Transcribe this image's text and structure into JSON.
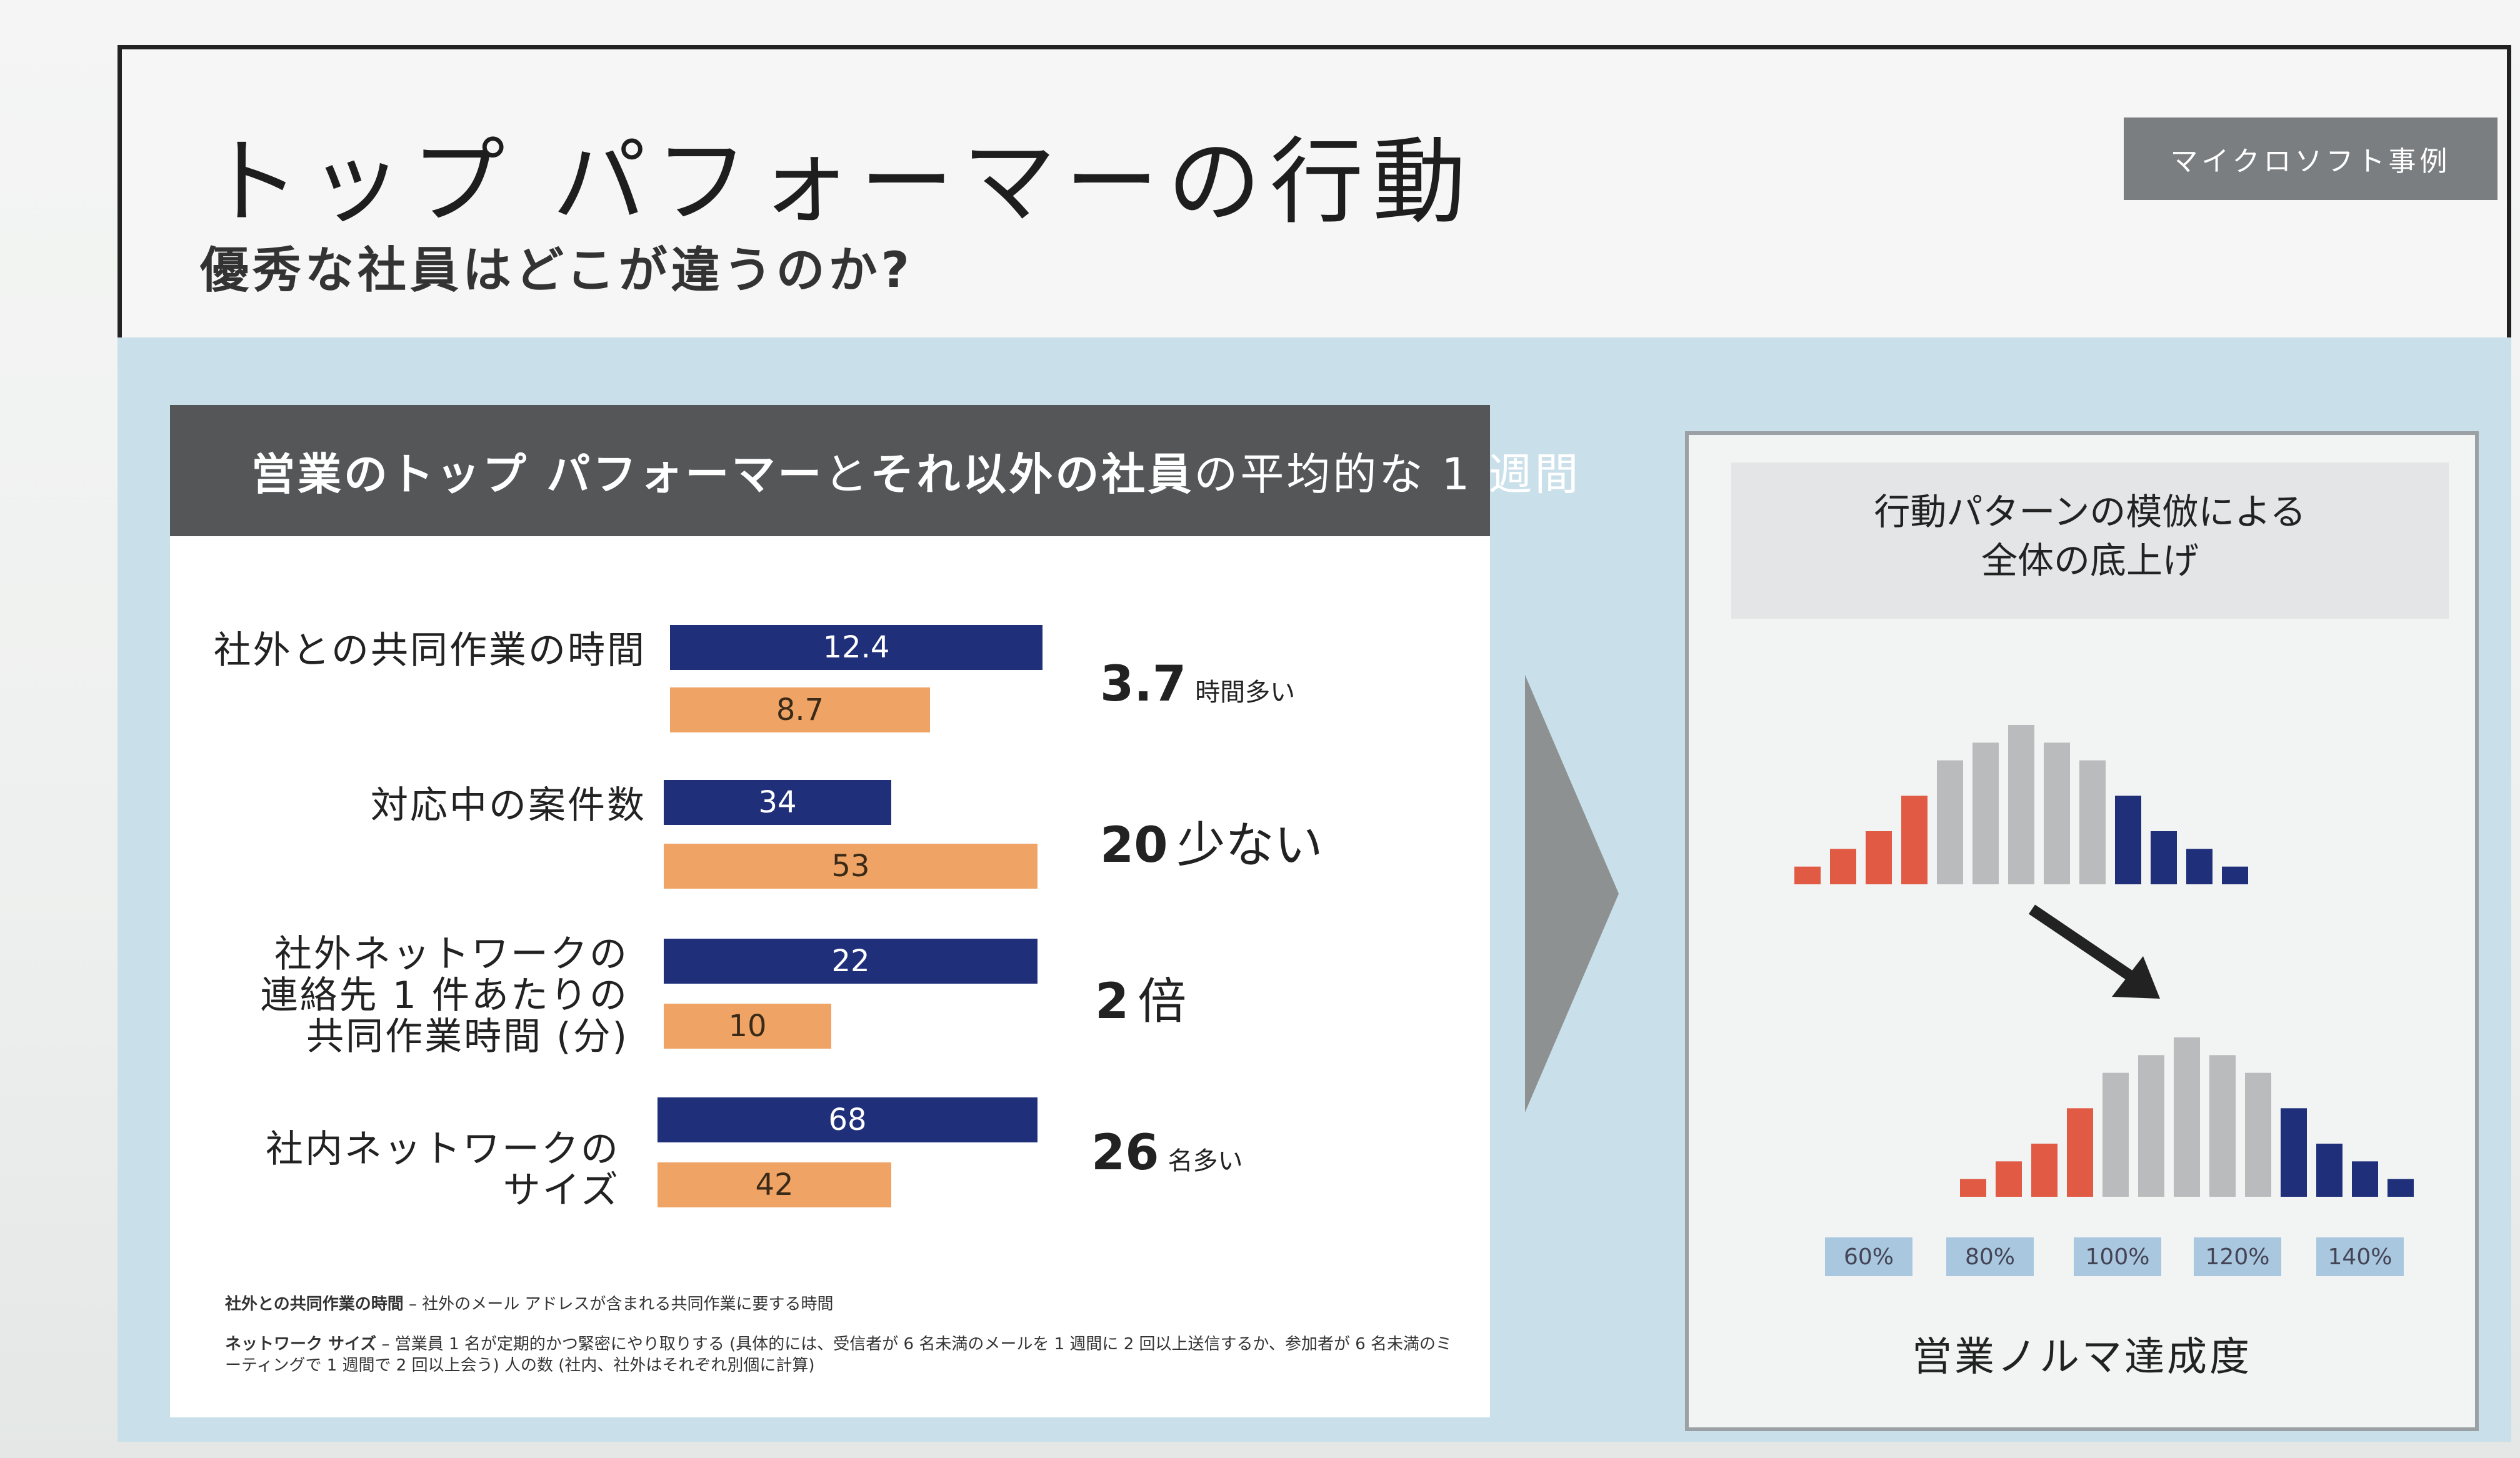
{
  "slide": {
    "title": "トップ パフォーマーの行動",
    "subtitle": "優秀な社員はどこが違うのか?",
    "tag": "マイクロソフト事例"
  },
  "left_panel": {
    "header_bold_1": "営業のトップ パフォーマー",
    "header_normal_1": "と",
    "header_bold_2": "それ以外の社員",
    "header_normal_2": "の平均的な 1 週間",
    "rows": [
      {
        "label": "社外との共同作業の時間",
        "top_value": "12.4",
        "other_value": "8.7",
        "diff_num": "3.7",
        "diff_unit": "時間多い"
      },
      {
        "label": "対応中の案件数",
        "top_value": "34",
        "other_value": "53",
        "diff_num": "20",
        "diff_unit": "少ない"
      },
      {
        "label_lines": [
          "社外ネットワークの",
          "連絡先 1 件あたりの",
          "共同作業時間 (分)"
        ],
        "top_value": "22",
        "other_value": "10",
        "diff_num": "2",
        "diff_unit": "倍"
      },
      {
        "label_lines": [
          "社内ネットワークの",
          "サイズ"
        ],
        "top_value": "68",
        "other_value": "42",
        "diff_num": "26",
        "diff_unit": "名多い"
      }
    ],
    "note1_bold": "社外との共同作業の時間",
    "note1_text": " – 社外のメール アドレスが含まれる共同作業に要する時間",
    "note2_bold": "ネットワーク サイズ",
    "note2_text": " – 営業員 1 名が定期的かつ緊密にやり取りする (具体的には、受信者が 6 名未満のメールを 1 週間に 2 回以上送信するか、参加者が 6 名未満のミーティングで 1 週間で 2 回以上会う) 人の数 (社内、社外はそれぞれ別個に計算)"
  },
  "right_panel": {
    "head_line1": "行動パターンの模倣による",
    "head_line2": "全体の底上げ",
    "ticks": [
      "60%",
      "80%",
      "100%",
      "120%",
      "140%"
    ],
    "footer": "営業ノルマ達成度",
    "colors": {
      "low": "#e05a44",
      "mid": "#b9bbbc",
      "high": "#1f2f7a"
    }
  },
  "chart_data": {
    "type": "bar",
    "title": "",
    "series": [
      {
        "values": [
          1,
          2,
          3,
          5,
          7,
          8,
          9,
          8,
          7,
          5,
          3,
          2,
          1
        ]
      },
      {
        "values": [
          1,
          2,
          3,
          5,
          7,
          8,
          9,
          8,
          7,
          5,
          3,
          2,
          1
        ]
      }
    ],
    "xlabel": "営業ノルマ達成度",
    "x_ticks": [
      "60%",
      "80%",
      "100%",
      "120%",
      "140%"
    ],
    "grid": false
  }
}
